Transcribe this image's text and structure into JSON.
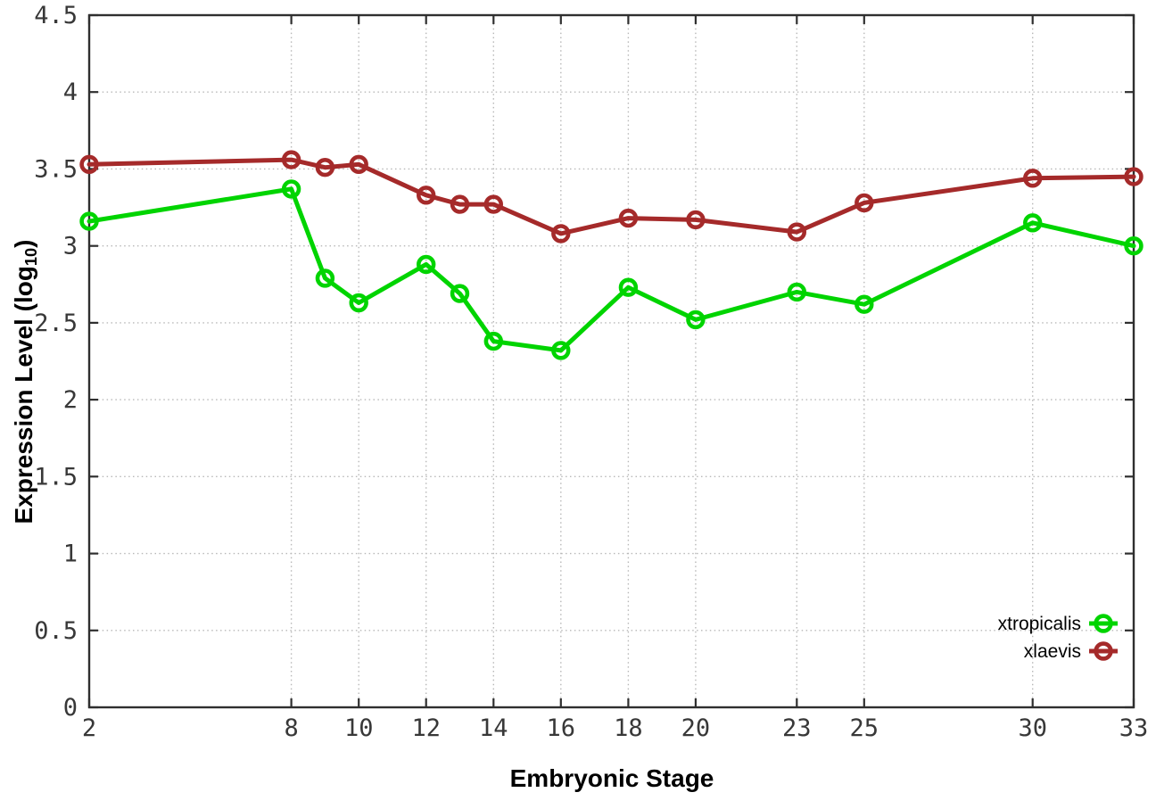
{
  "chart_data": {
    "type": "line",
    "title": "",
    "xlabel": "Embryonic Stage",
    "ylabel_prefix": "Expression Level (log",
    "ylabel_sub": "10",
    "ylabel_suffix": ")",
    "x": [
      2,
      8,
      9,
      10,
      12,
      13,
      14,
      16,
      18,
      20,
      23,
      25,
      30,
      33
    ],
    "series": [
      {
        "name": "xtropicalis",
        "color": "#00d400",
        "values": [
          3.16,
          3.37,
          2.79,
          2.63,
          2.88,
          2.69,
          2.38,
          2.32,
          2.73,
          2.52,
          2.7,
          2.62,
          3.15,
          3.0
        ]
      },
      {
        "name": "xlaevis",
        "color": "#a52a2a",
        "values": [
          3.53,
          3.56,
          3.51,
          3.53,
          3.33,
          3.27,
          3.27,
          3.08,
          3.18,
          3.17,
          3.09,
          3.28,
          3.44,
          3.45
        ]
      }
    ],
    "xlim": [
      2,
      33
    ],
    "ylim": [
      0,
      4.5
    ],
    "xticks": {
      "values": [
        2,
        8,
        10,
        12,
        14,
        16,
        18,
        20,
        23,
        25,
        30,
        33
      ],
      "labels": [
        "2",
        "8",
        "10",
        "12",
        "14",
        "16",
        "18",
        "20",
        "23",
        "25",
        "30",
        "33"
      ]
    },
    "yticks": {
      "values": [
        0,
        0.5,
        1,
        1.5,
        2,
        2.5,
        3,
        3.5,
        4,
        4.5
      ],
      "labels": [
        "0",
        "0.5",
        "1",
        "1.5",
        "2",
        "2.5",
        "3",
        "3.5",
        "4",
        "4.5"
      ]
    },
    "grid": true,
    "legend_position": "bottom-right",
    "marker": "open-circle"
  },
  "theme": {
    "background": "#ffffff",
    "border_color": "#2f2f2f",
    "grid_color": "#b8b8b8",
    "tick_label_color": "#383838",
    "legend_text_color": "#000000"
  }
}
